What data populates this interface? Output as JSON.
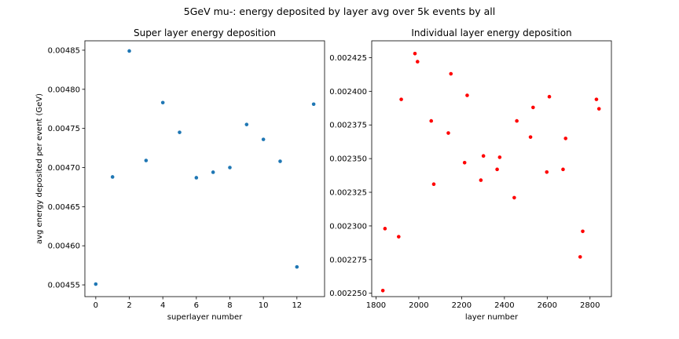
{
  "suptitle": "5GeV mu-: energy deposited by layer avg over 5k events by all",
  "chart_data": [
    {
      "type": "scatter",
      "title": "Super layer energy deposition",
      "xlabel": "superlayer number",
      "ylabel": "avg energy deposited per event (GeV)",
      "color": "#1f77b4",
      "xlim": [
        -0.65,
        13.65
      ],
      "ylim": [
        0.004535,
        0.004862
      ],
      "xticks": [
        0,
        2,
        4,
        6,
        8,
        10,
        12
      ],
      "xtick_labels": [
        "0",
        "2",
        "4",
        "6",
        "8",
        "10",
        "12"
      ],
      "yticks": [
        0.00455,
        0.0046,
        0.00465,
        0.0047,
        0.00475,
        0.0048,
        0.00485
      ],
      "ytick_labels": [
        "0.00455",
        "0.00460",
        "0.00465",
        "0.00470",
        "0.00475",
        "0.00480",
        "0.00485"
      ],
      "points": [
        {
          "x": 0,
          "y": 0.004551
        },
        {
          "x": 1,
          "y": 0.004688
        },
        {
          "x": 2,
          "y": 0.004849
        },
        {
          "x": 3,
          "y": 0.004709
        },
        {
          "x": 4,
          "y": 0.004783
        },
        {
          "x": 5,
          "y": 0.004745
        },
        {
          "x": 6,
          "y": 0.004687
        },
        {
          "x": 7,
          "y": 0.004694
        },
        {
          "x": 8,
          "y": 0.0047
        },
        {
          "x": 9,
          "y": 0.004755
        },
        {
          "x": 10,
          "y": 0.004736
        },
        {
          "x": 11,
          "y": 0.004708
        },
        {
          "x": 12,
          "y": 0.004573
        },
        {
          "x": 13,
          "y": 0.004781
        }
      ]
    },
    {
      "type": "scatter",
      "title": "Individual layer energy deposition",
      "xlabel": "layer number",
      "ylabel": "",
      "color": "#ff0000",
      "xlim": [
        1780,
        2900
      ],
      "ylim": [
        0.0022475,
        0.0024375
      ],
      "xticks": [
        1800,
        2000,
        2200,
        2400,
        2600,
        2800
      ],
      "xtick_labels": [
        "1800",
        "2000",
        "2200",
        "2400",
        "2600",
        "2800"
      ],
      "yticks": [
        0.00225,
        0.002275,
        0.0023,
        0.002325,
        0.00235,
        0.002375,
        0.0024,
        0.002425
      ],
      "ytick_labels": [
        "0.002250",
        "0.002275",
        "0.002300",
        "0.002325",
        "0.002350",
        "0.002375",
        "0.002400",
        "0.002425"
      ],
      "points": [
        {
          "x": 1832,
          "y": 0.002252
        },
        {
          "x": 1842,
          "y": 0.002298
        },
        {
          "x": 1906,
          "y": 0.002292
        },
        {
          "x": 1918,
          "y": 0.002394
        },
        {
          "x": 1982,
          "y": 0.002428
        },
        {
          "x": 1994,
          "y": 0.002422
        },
        {
          "x": 2058,
          "y": 0.002378
        },
        {
          "x": 2070,
          "y": 0.002331
        },
        {
          "x": 2138,
          "y": 0.002369
        },
        {
          "x": 2150,
          "y": 0.002413
        },
        {
          "x": 2214,
          "y": 0.002347
        },
        {
          "x": 2226,
          "y": 0.002397
        },
        {
          "x": 2290,
          "y": 0.002334
        },
        {
          "x": 2302,
          "y": 0.002352
        },
        {
          "x": 2366,
          "y": 0.002342
        },
        {
          "x": 2378,
          "y": 0.002351
        },
        {
          "x": 2446,
          "y": 0.002321
        },
        {
          "x": 2458,
          "y": 0.002378
        },
        {
          "x": 2522,
          "y": 0.002366
        },
        {
          "x": 2534,
          "y": 0.002388
        },
        {
          "x": 2598,
          "y": 0.00234
        },
        {
          "x": 2610,
          "y": 0.002396
        },
        {
          "x": 2674,
          "y": 0.002342
        },
        {
          "x": 2686,
          "y": 0.002365
        },
        {
          "x": 2754,
          "y": 0.002277
        },
        {
          "x": 2766,
          "y": 0.002296
        },
        {
          "x": 2830,
          "y": 0.002394
        },
        {
          "x": 2842,
          "y": 0.002387
        }
      ]
    }
  ]
}
